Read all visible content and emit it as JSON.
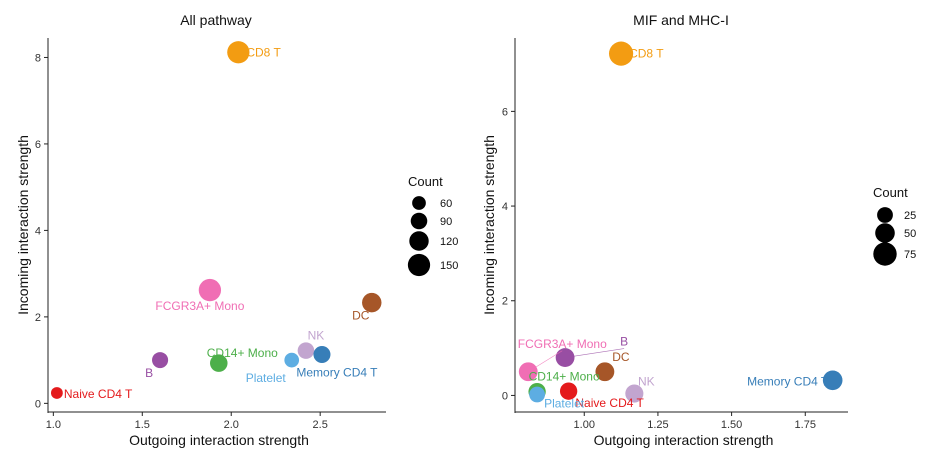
{
  "chart_data": [
    {
      "type": "scatter",
      "title": "All pathway",
      "xlabel": "Outgoing interaction strength",
      "ylabel": "Incoming interaction strength",
      "xlim": [
        0.97,
        2.87
      ],
      "ylim": [
        -0.2,
        8.45
      ],
      "xticks": [
        "1.0",
        "1.5",
        "2.0",
        "2.5"
      ],
      "xtick_values": [
        1.0,
        1.5,
        2.0,
        2.5
      ],
      "yticks": [
        "0",
        "2",
        "4",
        "6",
        "8"
      ],
      "ytick_values": [
        0,
        2,
        4,
        6,
        8
      ],
      "legend": {
        "title": "Count",
        "placement": "right",
        "entries": [
          {
            "label": "60",
            "value": 60
          },
          {
            "label": "90",
            "value": 90
          },
          {
            "label": "120",
            "value": 120
          },
          {
            "label": "150",
            "value": 150
          }
        ]
      },
      "points": [
        {
          "name": "CD8 T",
          "x": 2.04,
          "y": 8.12,
          "count": 150,
          "color": "#F39C12"
        },
        {
          "name": "FCGR3A+ Mono",
          "x": 1.88,
          "y": 2.62,
          "count": 150,
          "color": "#F06EB4"
        },
        {
          "name": "DC",
          "x": 2.79,
          "y": 2.33,
          "count": 120,
          "color": "#A65628"
        },
        {
          "name": "NK",
          "x": 2.42,
          "y": 1.22,
          "count": 90,
          "color": "#C2A5CF"
        },
        {
          "name": "Memory CD4 T",
          "x": 2.51,
          "y": 1.13,
          "count": 95,
          "color": "#377EB8"
        },
        {
          "name": "Platelet",
          "x": 2.34,
          "y": 1.0,
          "count": 70,
          "color": "#5DADE2"
        },
        {
          "name": "CD14+ Mono",
          "x": 1.93,
          "y": 0.93,
          "count": 100,
          "color": "#4DAF4A"
        },
        {
          "name": "B",
          "x": 1.6,
          "y": 1.0,
          "count": 85,
          "color": "#984EA3"
        },
        {
          "name": "Naive CD4 T",
          "x": 1.02,
          "y": 0.24,
          "count": 40,
          "color": "#E41A1C"
        }
      ]
    },
    {
      "type": "scatter",
      "title": "MIF and MHC-I",
      "xlabel": "Outgoing interaction strength",
      "ylabel": "Incoming interaction strength",
      "xlim": [
        0.765,
        1.895
      ],
      "ylim": [
        -0.35,
        7.55
      ],
      "xticks": [
        "1.00",
        "1.25",
        "1.50",
        "1.75"
      ],
      "xtick_values": [
        1.0,
        1.25,
        1.5,
        1.75
      ],
      "yticks": [
        "0",
        "2",
        "4",
        "6"
      ],
      "ytick_values": [
        0,
        2,
        4,
        6
      ],
      "legend": {
        "title": "Count",
        "placement": "right",
        "entries": [
          {
            "label": "25",
            "value": 25
          },
          {
            "label": "50",
            "value": 50
          },
          {
            "label": "75",
            "value": 75
          }
        ]
      },
      "points": [
        {
          "name": "CD8 T",
          "x": 1.125,
          "y": 7.22,
          "count": 80,
          "color": "#F39C12"
        },
        {
          "name": "Memory CD4 T",
          "x": 1.843,
          "y": 0.32,
          "count": 50,
          "color": "#377EB8"
        },
        {
          "name": "B",
          "x": 0.935,
          "y": 0.8,
          "count": 45,
          "color": "#984EA3"
        },
        {
          "name": "FCGR3A+ Mono",
          "x": 0.81,
          "y": 0.5,
          "count": 45,
          "color": "#F06EB4"
        },
        {
          "name": "DC",
          "x": 1.07,
          "y": 0.5,
          "count": 45,
          "color": "#A65628"
        },
        {
          "name": "NK",
          "x": 1.17,
          "y": 0.04,
          "count": 40,
          "color": "#C2A5CF"
        },
        {
          "name": "CD14+ Mono",
          "x": 0.84,
          "y": 0.08,
          "count": 35,
          "color": "#4DAF4A"
        },
        {
          "name": "Naive CD4 T",
          "x": 0.947,
          "y": 0.09,
          "count": 35,
          "color": "#E41A1C"
        },
        {
          "name": "Platelet",
          "x": 0.84,
          "y": 0.02,
          "count": 25,
          "color": "#5DADE2"
        }
      ]
    }
  ]
}
